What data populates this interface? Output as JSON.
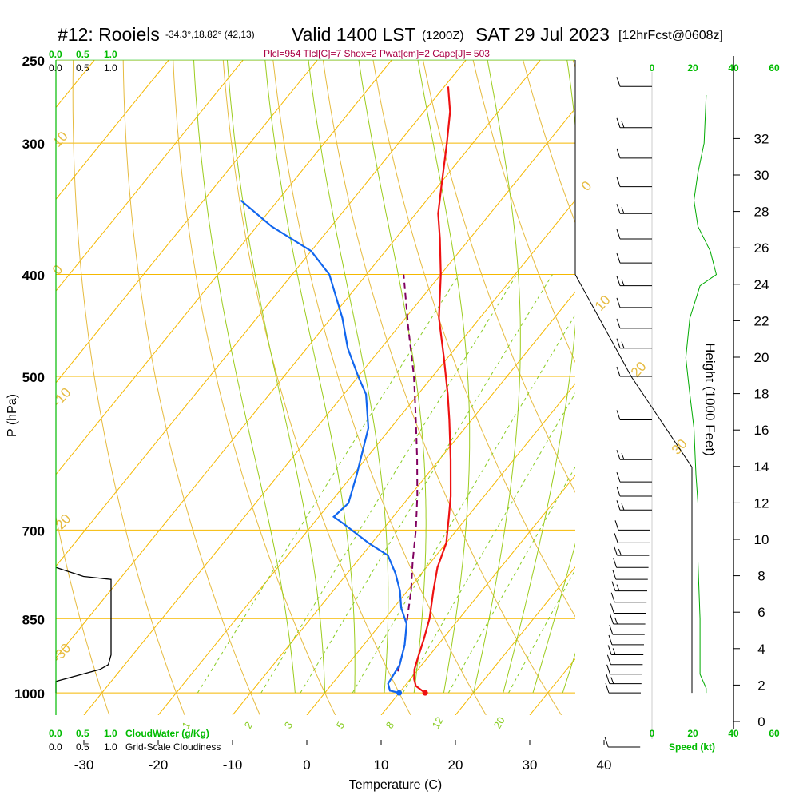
{
  "header": {
    "station": "#12: Rooiels",
    "coords": "-34.3°,18.82° (42,13)",
    "valid": "Valid 1400 LST",
    "utc": "(1200Z)",
    "date": "SAT 29 Jul 2023",
    "forecast": "[12hrFcst@0608z]"
  },
  "stats_line": "Plcl=954 Tlcl[C]=7 Shox=2 Pwat[cm]=2 Cape[J]= 503",
  "colors": {
    "isotherm": "#f5b800",
    "dry_adiabat": "#e6bb40",
    "moist_adiabat": "#9ccc1e",
    "mixing_ratio": "#88cc22",
    "temperature": "#ee1111",
    "dewpoint": "#1166ee",
    "parcel": "#800060",
    "green_text": "#00bb00",
    "maroon_text": "#aa0044"
  },
  "chart_data": {
    "type": "skew-t",
    "xlabel": "Temperature (C)",
    "ylabel": "P (hPa)",
    "ylabel_right": "Height (1000 Feet)",
    "x_ticks": [
      -30,
      -20,
      -10,
      0,
      10,
      20,
      30,
      40
    ],
    "pressure_ticks": [
      250,
      300,
      400,
      500,
      700,
      850,
      1000
    ],
    "height_ticks": [
      0,
      2,
      4,
      6,
      8,
      10,
      12,
      14,
      16,
      18,
      20,
      22,
      24,
      26,
      28,
      30,
      32
    ],
    "temperature_profile": [
      {
        "p": 1000,
        "t": 13.5
      },
      {
        "p": 985,
        "t": 11.5
      },
      {
        "p": 970,
        "t": 10.5
      },
      {
        "p": 950,
        "t": 9.5
      },
      {
        "p": 920,
        "t": 8.5
      },
      {
        "p": 890,
        "t": 7.5
      },
      {
        "p": 850,
        "t": 6.0
      },
      {
        "p": 800,
        "t": 3.5
      },
      {
        "p": 760,
        "t": 1.5
      },
      {
        "p": 720,
        "t": 0.0
      },
      {
        "p": 680,
        "t": -2.5
      },
      {
        "p": 650,
        "t": -4.5
      },
      {
        "p": 600,
        "t": -8.5
      },
      {
        "p": 550,
        "t": -13.0
      },
      {
        "p": 520,
        "t": -16.0
      },
      {
        "p": 480,
        "t": -20.5
      },
      {
        "p": 440,
        "t": -25.5
      },
      {
        "p": 400,
        "t": -30.0
      },
      {
        "p": 370,
        "t": -34.0
      },
      {
        "p": 350,
        "t": -37.0
      },
      {
        "p": 330,
        "t": -39.5
      },
      {
        "p": 300,
        "t": -43.5
      },
      {
        "p": 280,
        "t": -46.5
      },
      {
        "p": 265,
        "t": -49.5
      }
    ],
    "dewpoint_profile": [
      {
        "p": 1000,
        "t": 10.0
      },
      {
        "p": 995,
        "t": 8.5
      },
      {
        "p": 980,
        "t": 7.5
      },
      {
        "p": 940,
        "t": 7.0
      },
      {
        "p": 900,
        "t": 5.5
      },
      {
        "p": 860,
        "t": 3.5
      },
      {
        "p": 830,
        "t": 1.0
      },
      {
        "p": 800,
        "t": -1.0
      },
      {
        "p": 770,
        "t": -3.5
      },
      {
        "p": 740,
        "t": -6.5
      },
      {
        "p": 720,
        "t": -10.5
      },
      {
        "p": 690,
        "t": -16.0
      },
      {
        "p": 680,
        "t": -18.0
      },
      {
        "p": 660,
        "t": -17.5
      },
      {
        "p": 620,
        "t": -19.5
      },
      {
        "p": 560,
        "t": -23.0
      },
      {
        "p": 520,
        "t": -27.0
      },
      {
        "p": 500,
        "t": -30.0
      },
      {
        "p": 470,
        "t": -34.5
      },
      {
        "p": 440,
        "t": -38.5
      },
      {
        "p": 400,
        "t": -45.0
      },
      {
        "p": 380,
        "t": -50.0
      },
      {
        "p": 360,
        "t": -58.0
      },
      {
        "p": 340,
        "t": -65.0
      }
    ],
    "parcel_profile": [
      {
        "p": 954,
        "t": 7.5
      },
      {
        "p": 900,
        "t": 5.5
      },
      {
        "p": 850,
        "t": 3.0
      },
      {
        "p": 800,
        "t": 0.5
      },
      {
        "p": 750,
        "t": -2.5
      },
      {
        "p": 700,
        "t": -5.5
      },
      {
        "p": 650,
        "t": -9.0
      },
      {
        "p": 600,
        "t": -13.0
      },
      {
        "p": 550,
        "t": -17.5
      },
      {
        "p": 500,
        "t": -22.5
      },
      {
        "p": 450,
        "t": -28.5
      },
      {
        "p": 400,
        "t": -35.0
      }
    ],
    "surface_points": {
      "temperature": 13.5,
      "dewpoint": 10.0
    },
    "mixing_ratio_labels": [
      "1",
      "2",
      "3",
      "5",
      "8",
      "12",
      "20"
    ],
    "dry_adiabat_labels": [
      "10",
      "0",
      "-10",
      "-20",
      "-30",
      "0",
      "10",
      "20",
      "30"
    ],
    "cloud_water": {
      "label": "CloudWater (g/Kg)",
      "scale_labels": [
        "0.0",
        "0.5",
        "1.0"
      ]
    },
    "cloudiness": {
      "label": "Grid-Scale Cloudiness",
      "scale_labels": [
        "0.0",
        "0.5",
        "1.0"
      ],
      "profile": [
        {
          "p": 1000,
          "v": 0.0
        },
        {
          "p": 975,
          "v": 0.0
        },
        {
          "p": 950,
          "v": 0.8
        },
        {
          "p": 940,
          "v": 0.95
        },
        {
          "p": 920,
          "v": 1.0
        },
        {
          "p": 900,
          "v": 1.0
        },
        {
          "p": 850,
          "v": 1.0
        },
        {
          "p": 800,
          "v": 1.0
        },
        {
          "p": 780,
          "v": 1.0
        },
        {
          "p": 775,
          "v": 0.5
        },
        {
          "p": 760,
          "v": 0.0
        }
      ]
    },
    "wind_speed": {
      "label": "Speed (kt)",
      "ticks": [
        0,
        20,
        40,
        60
      ],
      "profile": [
        {
          "p": 1000,
          "v": 5
        },
        {
          "p": 990,
          "v": 5
        },
        {
          "p": 960,
          "v": 2
        },
        {
          "p": 900,
          "v": 2
        },
        {
          "p": 850,
          "v": 2
        },
        {
          "p": 750,
          "v": 1
        },
        {
          "p": 660,
          "v": 1
        },
        {
          "p": 620,
          "v": 0
        },
        {
          "p": 560,
          "v": -1
        },
        {
          "p": 520,
          "v": -3
        },
        {
          "p": 480,
          "v": -5
        },
        {
          "p": 440,
          "v": -3
        },
        {
          "p": 410,
          "v": 2
        },
        {
          "p": 400,
          "v": 10
        },
        {
          "p": 380,
          "v": 7
        },
        {
          "p": 360,
          "v": 1
        },
        {
          "p": 340,
          "v": -1
        },
        {
          "p": 320,
          "v": 1
        },
        {
          "p": 300,
          "v": 4
        },
        {
          "p": 270,
          "v": 5
        }
      ]
    },
    "wind_barbs_pressures": [
      265,
      290,
      310,
      330,
      350,
      370,
      390,
      410,
      430,
      450,
      470,
      500,
      550,
      600,
      630,
      650,
      670,
      700,
      720,
      740,
      760,
      780,
      800,
      820,
      840,
      860,
      880,
      900,
      920,
      940,
      960,
      980,
      1000,
      1020
    ]
  }
}
